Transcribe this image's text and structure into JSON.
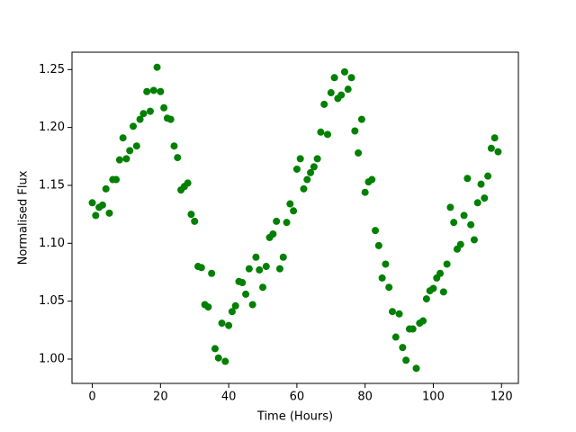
{
  "chart_data": {
    "type": "scatter",
    "x_label": "Time (Hours)",
    "y_label": "Normalised Flux",
    "color": "#008000",
    "x": [
      0,
      1,
      2,
      3,
      4,
      5,
      6,
      7,
      8,
      9,
      10,
      11,
      12,
      13,
      14,
      15,
      16,
      17,
      18,
      19,
      20,
      21,
      22,
      23,
      24,
      25,
      26,
      27,
      28,
      29,
      30,
      31,
      32,
      33,
      34,
      35,
      36,
      37,
      38,
      39,
      40,
      41,
      42,
      43,
      44,
      45,
      46,
      47,
      48,
      49,
      50,
      51,
      52,
      53,
      54,
      55,
      56,
      57,
      58,
      59,
      60,
      61,
      62,
      63,
      64,
      65,
      66,
      67,
      68,
      69,
      70,
      71,
      72,
      73,
      74,
      75,
      76,
      77,
      78,
      79,
      80,
      81,
      82,
      83,
      84,
      85,
      86,
      87,
      88,
      89,
      90,
      91,
      92,
      93,
      94,
      95,
      96,
      97,
      98,
      99,
      100,
      101,
      102,
      103,
      104,
      105,
      106,
      107,
      108,
      109,
      110,
      111,
      112,
      113,
      114,
      115,
      116,
      117,
      118,
      119
    ],
    "values": [
      1.135,
      1.124,
      1.131,
      1.133,
      1.147,
      1.126,
      1.155,
      1.155,
      1.172,
      1.191,
      1.173,
      1.18,
      1.201,
      1.184,
      1.207,
      1.212,
      1.231,
      1.214,
      1.232,
      1.252,
      1.231,
      1.217,
      1.208,
      1.207,
      1.184,
      1.174,
      1.146,
      1.149,
      1.152,
      1.125,
      1.119,
      1.08,
      1.079,
      1.047,
      1.045,
      1.074,
      1.009,
      1.001,
      1.031,
      0.998,
      1.029,
      1.041,
      1.046,
      1.067,
      1.066,
      1.056,
      1.078,
      1.047,
      1.088,
      1.077,
      1.062,
      1.08,
      1.105,
      1.108,
      1.119,
      1.078,
      1.088,
      1.118,
      1.134,
      1.128,
      1.164,
      1.173,
      1.147,
      1.155,
      1.161,
      1.166,
      1.173,
      1.196,
      1.22,
      1.194,
      1.23,
      1.243,
      1.225,
      1.228,
      1.248,
      1.233,
      1.243,
      1.197,
      1.178,
      1.207,
      1.144,
      1.153,
      1.155,
      1.111,
      1.098,
      1.07,
      1.082,
      1.062,
      1.041,
      1.019,
      1.039,
      1.01,
      0.999,
      1.026,
      1.026,
      0.992,
      1.031,
      1.033,
      1.052,
      1.059,
      1.061,
      1.07,
      1.074,
      1.058,
      1.082,
      1.131,
      1.118,
      1.095,
      1.099,
      1.124,
      1.156,
      1.116,
      1.103,
      1.135,
      1.151,
      1.139,
      1.158,
      1.182,
      1.191,
      1.179
    ],
    "xlim": [
      -5.95,
      124.95
    ],
    "ylim": [
      0.979,
      1.265
    ],
    "xticks": [
      0,
      20,
      40,
      60,
      80,
      100,
      120
    ],
    "yticks": [
      {
        "value": 1.0,
        "label": "1.00"
      },
      1.05,
      {
        "value": 1.1,
        "label": "1.10"
      },
      1.15,
      {
        "value": 1.2,
        "label": "1.20"
      },
      1.25
    ]
  }
}
